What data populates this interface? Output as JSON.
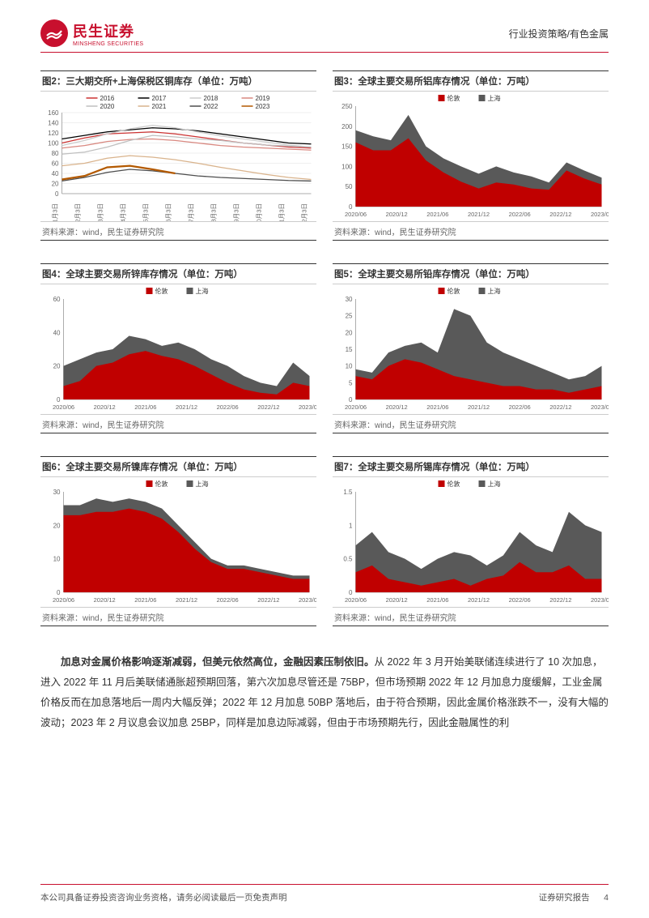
{
  "header": {
    "logo_cn": "民生证券",
    "logo_en": "MINSHENG SECURITIES",
    "right_text": "行业投资策略/有色金属"
  },
  "charts": {
    "c2": {
      "title": "图2：三大期交所+上海保税区铜库存（单位：万吨）",
      "source": "资料来源：wind，民生证券研究院",
      "type": "line",
      "ylim": [
        0,
        160
      ],
      "ytick_step": 20,
      "x_labels": [
        "1月3日",
        "2月3日",
        "3月3日",
        "4月3日",
        "5月3日",
        "6月3日",
        "7月3日",
        "8月3日",
        "9月3日",
        "10月3日",
        "11月3日",
        "12月3日"
      ],
      "series": [
        {
          "name": "2016",
          "color": "#cc3333",
          "data": [
            100,
            110,
            118,
            120,
            122,
            118,
            112,
            106,
            100,
            96,
            92,
            90
          ]
        },
        {
          "name": "2017",
          "color": "#000000",
          "data": [
            108,
            115,
            122,
            126,
            130,
            128,
            124,
            118,
            112,
            106,
            100,
            98
          ]
        },
        {
          "name": "2018",
          "color": "#cccccc",
          "data": [
            95,
            105,
            118,
            128,
            135,
            130,
            122,
            114,
            108,
            102,
            96,
            92
          ]
        },
        {
          "name": "2019",
          "color": "#d98880",
          "data": [
            90,
            95,
            103,
            107,
            108,
            105,
            100,
            95,
            92,
            90,
            88,
            86
          ]
        },
        {
          "name": "2020",
          "color": "#bfbfbf",
          "data": [
            78,
            82,
            92,
            105,
            115,
            112,
            108,
            105,
            100,
            96,
            94,
            92
          ]
        },
        {
          "name": "2021",
          "color": "#d9b38c",
          "data": [
            55,
            60,
            70,
            75,
            72,
            67,
            60,
            52,
            45,
            38,
            32,
            28
          ]
        },
        {
          "name": "2022",
          "color": "#4d4d4d",
          "data": [
            25,
            32,
            42,
            48,
            45,
            40,
            35,
            32,
            30,
            28,
            26,
            25
          ]
        },
        {
          "name": "2023",
          "color": "#b35900",
          "data": [
            28,
            35,
            52,
            55,
            48,
            40,
            null,
            null,
            null,
            null,
            null,
            null
          ]
        }
      ]
    },
    "c3": {
      "title": "图3：全球主要交易所铝库存情况（单位：万吨）",
      "source": "资料来源：wind，民生证券研究院",
      "type": "area",
      "ylim": [
        0,
        250
      ],
      "ytick_step": 50,
      "x_labels": [
        "2020/06",
        "2020/12",
        "2021/06",
        "2021/12",
        "2022/06",
        "2022/12",
        "2023/06"
      ],
      "legend": [
        [
          "伦敦",
          "#c00000"
        ],
        [
          "上海",
          "#595959"
        ]
      ],
      "bottom": "伦敦",
      "bottom_color": "#c00000",
      "top": "上海",
      "top_color": "#595959",
      "bottom_data": [
        160,
        140,
        140,
        170,
        115,
        85,
        62,
        45,
        60,
        55,
        45,
        42,
        90,
        70,
        55
      ],
      "total_data": [
        190,
        175,
        165,
        228,
        150,
        120,
        100,
        82,
        100,
        85,
        75,
        60,
        110,
        90,
        72
      ]
    },
    "c4": {
      "title": "图4：全球主要交易所锌库存情况（单位：万吨）",
      "source": "资料来源：wind，民生证券研究院",
      "type": "area",
      "ylim": [
        0,
        60
      ],
      "ytick_step": 20,
      "x_labels": [
        "2020/06",
        "2020/12",
        "2021/06",
        "2021/12",
        "2022/06",
        "2022/12",
        "2023/06"
      ],
      "legend": [
        [
          "伦敦",
          "#c00000"
        ],
        [
          "上海",
          "#595959"
        ]
      ],
      "bottom_color": "#c00000",
      "top_color": "#595959",
      "bottom_data": [
        8,
        11,
        20,
        22,
        27,
        29,
        26,
        24,
        20,
        15,
        10,
        6,
        4,
        3,
        10,
        8
      ],
      "total_data": [
        20,
        24,
        28,
        30,
        38,
        36,
        32,
        34,
        30,
        24,
        20,
        14,
        10,
        8,
        22,
        14
      ]
    },
    "c5": {
      "title": "图5：全球主要交易所铅库存情况（单位：万吨）",
      "source": "资料来源：wind，民生证券研究院",
      "type": "area",
      "ylim": [
        0,
        30
      ],
      "ytick_step": 5,
      "x_labels": [
        "2020/06",
        "2020/12",
        "2021/06",
        "2021/12",
        "2022/06",
        "2022/12",
        "2023/06"
      ],
      "legend": [
        [
          "伦敦",
          "#c00000"
        ],
        [
          "上海",
          "#595959"
        ]
      ],
      "bottom_color": "#c00000",
      "top_color": "#595959",
      "bottom_data": [
        7,
        6,
        10,
        12,
        11,
        9,
        7,
        6,
        5,
        4,
        4,
        3,
        3,
        2,
        3,
        4
      ],
      "total_data": [
        9,
        8,
        14,
        16,
        17,
        14,
        27,
        25,
        17,
        14,
        12,
        10,
        8,
        6,
        7,
        10
      ]
    },
    "c6": {
      "title": "图6：全球主要交易所镍库存情况（单位：万吨）",
      "source": "资料来源：wind，民生证券研究院",
      "type": "area",
      "ylim": [
        0,
        30
      ],
      "ytick_step": 10,
      "x_labels": [
        "2020/06",
        "2020/12",
        "2021/06",
        "2021/12",
        "2022/06",
        "2022/12",
        "2023/06"
      ],
      "legend": [
        [
          "伦敦",
          "#c00000"
        ],
        [
          "上海",
          "#595959"
        ]
      ],
      "bottom_color": "#c00000",
      "top_color": "#595959",
      "bottom_data": [
        23,
        23,
        24,
        24,
        25,
        24,
        22,
        18,
        13,
        9,
        7,
        7,
        6,
        5,
        4,
        4
      ],
      "total_data": [
        26,
        26,
        28,
        27,
        28,
        27,
        25,
        20,
        15,
        10,
        8,
        8,
        7,
        6,
        5,
        5
      ]
    },
    "c7": {
      "title": "图7：全球主要交易所锡库存情况（单位：万吨）",
      "source": "资料来源：wind，民生证券研究院",
      "type": "area",
      "ylim": [
        0,
        1.5
      ],
      "ytick_step": 0.5,
      "x_labels": [
        "2020/06",
        "2020/12",
        "2021/06",
        "2021/12",
        "2022/06",
        "2022/12",
        "2023/06"
      ],
      "legend": [
        [
          "伦敦",
          "#c00000"
        ],
        [
          "上海",
          "#595959"
        ]
      ],
      "bottom_color": "#c00000",
      "top_color": "#595959",
      "bottom_data": [
        0.3,
        0.4,
        0.2,
        0.15,
        0.1,
        0.15,
        0.2,
        0.1,
        0.2,
        0.25,
        0.45,
        0.3,
        0.3,
        0.4,
        0.2,
        0.2
      ],
      "total_data": [
        0.7,
        0.9,
        0.6,
        0.5,
        0.35,
        0.5,
        0.6,
        0.55,
        0.4,
        0.55,
        0.9,
        0.7,
        0.6,
        1.2,
        1.0,
        0.9
      ]
    }
  },
  "body": {
    "p1_bold": "加息对金属价格影响逐渐减弱，但美元依然高位，金融因素压制依旧。",
    "p1_rest": "从 2022 年 3 月开始美联储连续进行了 10 次加息，进入 2022 年 11 月后美联储通胀超预期回落，第六次加息尽管还是 75BP，但市场预期 2022 年 12 月加息力度缓解，工业金属价格反而在加息落地后一周内大幅反弹；2022 年 12 月加息 50BP 落地后，由于符合预期，因此金属价格涨跌不一，没有大幅的波动；2023 年 2 月议息会议加息 25BP，同样是加息边际减弱，但由于市场预期先行，因此金融属性的利"
  },
  "footer": {
    "left": "本公司具备证券投资咨询业务资格，请务必阅读最后一页免责声明",
    "right_label": "证券研究报告",
    "page": "4"
  },
  "colors": {
    "brand": "#c8102e",
    "grid": "#e0e0e0",
    "axis": "#666666"
  }
}
